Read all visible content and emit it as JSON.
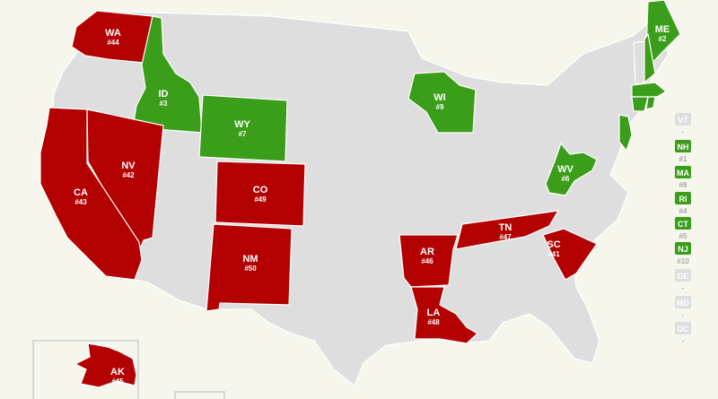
{
  "colors": {
    "top": "#3a9e1a",
    "bottom": "#b30000",
    "neutral": "#dedede",
    "background": "#f6f6ec"
  },
  "states": [
    {
      "code": "WA",
      "rank": "#44",
      "group": "bottom"
    },
    {
      "code": "ID",
      "rank": "#3",
      "group": "top"
    },
    {
      "code": "WY",
      "rank": "#7",
      "group": "top"
    },
    {
      "code": "NV",
      "rank": "#42",
      "group": "bottom"
    },
    {
      "code": "CA",
      "rank": "#43",
      "group": "bottom"
    },
    {
      "code": "CO",
      "rank": "#49",
      "group": "bottom"
    },
    {
      "code": "NM",
      "rank": "#50",
      "group": "bottom"
    },
    {
      "code": "WI",
      "rank": "#9",
      "group": "top"
    },
    {
      "code": "AR",
      "rank": "#46",
      "group": "bottom"
    },
    {
      "code": "TN",
      "rank": "#47",
      "group": "bottom"
    },
    {
      "code": "LA",
      "rank": "#48",
      "group": "bottom"
    },
    {
      "code": "SC",
      "rank": "#41",
      "group": "bottom"
    },
    {
      "code": "WV",
      "rank": "#6",
      "group": "top"
    },
    {
      "code": "ME",
      "rank": "#2",
      "group": "top"
    },
    {
      "code": "AK",
      "rank": "#45",
      "group": "bottom"
    }
  ],
  "side_list": [
    {
      "code": "VT",
      "rank": "-",
      "group": "neutral"
    },
    {
      "code": "NH",
      "rank": "#1",
      "group": "top"
    },
    {
      "code": "MA",
      "rank": "#8",
      "group": "top"
    },
    {
      "code": "RI",
      "rank": "#4",
      "group": "top"
    },
    {
      "code": "CT",
      "rank": "#5",
      "group": "top"
    },
    {
      "code": "NJ",
      "rank": "#10",
      "group": "top"
    },
    {
      "code": "DE",
      "rank": "-",
      "group": "neutral"
    },
    {
      "code": "MD",
      "rank": "-",
      "group": "neutral"
    },
    {
      "code": "DC",
      "rank": "-",
      "group": "neutral"
    }
  ]
}
